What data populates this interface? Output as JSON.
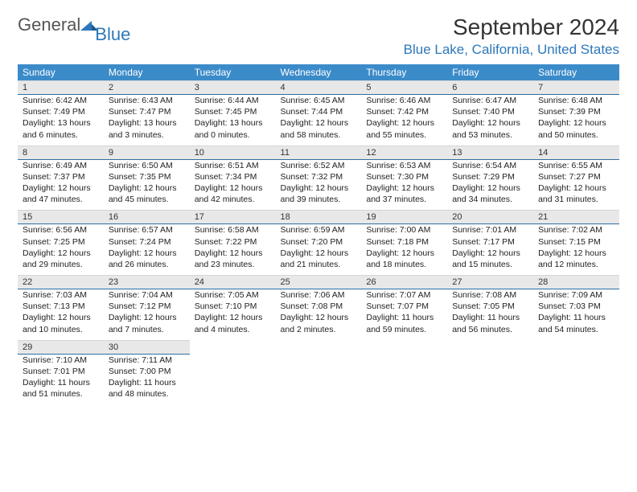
{
  "brand": {
    "general": "General",
    "blue": "Blue"
  },
  "title": "September 2024",
  "location": "Blue Lake, California, United States",
  "colors": {
    "header_bg": "#3b8bc9",
    "header_fg": "#ffffff",
    "daybar_bg": "#e8e8e8",
    "accent": "#2d78bb",
    "text": "#222222"
  },
  "day_headers": [
    "Sunday",
    "Monday",
    "Tuesday",
    "Wednesday",
    "Thursday",
    "Friday",
    "Saturday"
  ],
  "weeks": [
    [
      {
        "n": "1",
        "sr": "Sunrise: 6:42 AM",
        "ss": "Sunset: 7:49 PM",
        "dl": "Daylight: 13 hours and 6 minutes."
      },
      {
        "n": "2",
        "sr": "Sunrise: 6:43 AM",
        "ss": "Sunset: 7:47 PM",
        "dl": "Daylight: 13 hours and 3 minutes."
      },
      {
        "n": "3",
        "sr": "Sunrise: 6:44 AM",
        "ss": "Sunset: 7:45 PM",
        "dl": "Daylight: 13 hours and 0 minutes."
      },
      {
        "n": "4",
        "sr": "Sunrise: 6:45 AM",
        "ss": "Sunset: 7:44 PM",
        "dl": "Daylight: 12 hours and 58 minutes."
      },
      {
        "n": "5",
        "sr": "Sunrise: 6:46 AM",
        "ss": "Sunset: 7:42 PM",
        "dl": "Daylight: 12 hours and 55 minutes."
      },
      {
        "n": "6",
        "sr": "Sunrise: 6:47 AM",
        "ss": "Sunset: 7:40 PM",
        "dl": "Daylight: 12 hours and 53 minutes."
      },
      {
        "n": "7",
        "sr": "Sunrise: 6:48 AM",
        "ss": "Sunset: 7:39 PM",
        "dl": "Daylight: 12 hours and 50 minutes."
      }
    ],
    [
      {
        "n": "8",
        "sr": "Sunrise: 6:49 AM",
        "ss": "Sunset: 7:37 PM",
        "dl": "Daylight: 12 hours and 47 minutes."
      },
      {
        "n": "9",
        "sr": "Sunrise: 6:50 AM",
        "ss": "Sunset: 7:35 PM",
        "dl": "Daylight: 12 hours and 45 minutes."
      },
      {
        "n": "10",
        "sr": "Sunrise: 6:51 AM",
        "ss": "Sunset: 7:34 PM",
        "dl": "Daylight: 12 hours and 42 minutes."
      },
      {
        "n": "11",
        "sr": "Sunrise: 6:52 AM",
        "ss": "Sunset: 7:32 PM",
        "dl": "Daylight: 12 hours and 39 minutes."
      },
      {
        "n": "12",
        "sr": "Sunrise: 6:53 AM",
        "ss": "Sunset: 7:30 PM",
        "dl": "Daylight: 12 hours and 37 minutes."
      },
      {
        "n": "13",
        "sr": "Sunrise: 6:54 AM",
        "ss": "Sunset: 7:29 PM",
        "dl": "Daylight: 12 hours and 34 minutes."
      },
      {
        "n": "14",
        "sr": "Sunrise: 6:55 AM",
        "ss": "Sunset: 7:27 PM",
        "dl": "Daylight: 12 hours and 31 minutes."
      }
    ],
    [
      {
        "n": "15",
        "sr": "Sunrise: 6:56 AM",
        "ss": "Sunset: 7:25 PM",
        "dl": "Daylight: 12 hours and 29 minutes."
      },
      {
        "n": "16",
        "sr": "Sunrise: 6:57 AM",
        "ss": "Sunset: 7:24 PM",
        "dl": "Daylight: 12 hours and 26 minutes."
      },
      {
        "n": "17",
        "sr": "Sunrise: 6:58 AM",
        "ss": "Sunset: 7:22 PM",
        "dl": "Daylight: 12 hours and 23 minutes."
      },
      {
        "n": "18",
        "sr": "Sunrise: 6:59 AM",
        "ss": "Sunset: 7:20 PM",
        "dl": "Daylight: 12 hours and 21 minutes."
      },
      {
        "n": "19",
        "sr": "Sunrise: 7:00 AM",
        "ss": "Sunset: 7:18 PM",
        "dl": "Daylight: 12 hours and 18 minutes."
      },
      {
        "n": "20",
        "sr": "Sunrise: 7:01 AM",
        "ss": "Sunset: 7:17 PM",
        "dl": "Daylight: 12 hours and 15 minutes."
      },
      {
        "n": "21",
        "sr": "Sunrise: 7:02 AM",
        "ss": "Sunset: 7:15 PM",
        "dl": "Daylight: 12 hours and 12 minutes."
      }
    ],
    [
      {
        "n": "22",
        "sr": "Sunrise: 7:03 AM",
        "ss": "Sunset: 7:13 PM",
        "dl": "Daylight: 12 hours and 10 minutes."
      },
      {
        "n": "23",
        "sr": "Sunrise: 7:04 AM",
        "ss": "Sunset: 7:12 PM",
        "dl": "Daylight: 12 hours and 7 minutes."
      },
      {
        "n": "24",
        "sr": "Sunrise: 7:05 AM",
        "ss": "Sunset: 7:10 PM",
        "dl": "Daylight: 12 hours and 4 minutes."
      },
      {
        "n": "25",
        "sr": "Sunrise: 7:06 AM",
        "ss": "Sunset: 7:08 PM",
        "dl": "Daylight: 12 hours and 2 minutes."
      },
      {
        "n": "26",
        "sr": "Sunrise: 7:07 AM",
        "ss": "Sunset: 7:07 PM",
        "dl": "Daylight: 11 hours and 59 minutes."
      },
      {
        "n": "27",
        "sr": "Sunrise: 7:08 AM",
        "ss": "Sunset: 7:05 PM",
        "dl": "Daylight: 11 hours and 56 minutes."
      },
      {
        "n": "28",
        "sr": "Sunrise: 7:09 AM",
        "ss": "Sunset: 7:03 PM",
        "dl": "Daylight: 11 hours and 54 minutes."
      }
    ],
    [
      {
        "n": "29",
        "sr": "Sunrise: 7:10 AM",
        "ss": "Sunset: 7:01 PM",
        "dl": "Daylight: 11 hours and 51 minutes."
      },
      {
        "n": "30",
        "sr": "Sunrise: 7:11 AM",
        "ss": "Sunset: 7:00 PM",
        "dl": "Daylight: 11 hours and 48 minutes."
      },
      null,
      null,
      null,
      null,
      null
    ]
  ]
}
